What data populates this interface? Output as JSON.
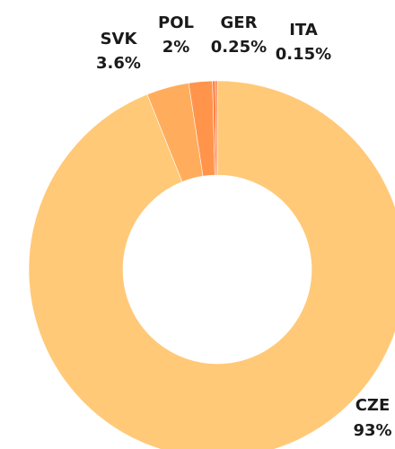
{
  "chart_data": {
    "type": "donut",
    "categories": [
      "CZE",
      "SVK",
      "POL",
      "GER",
      "ITA"
    ],
    "values": [
      93,
      3.6,
      2,
      0.25,
      0.15
    ],
    "value_labels": [
      "93%",
      "3.6%",
      "2%",
      "0.25%",
      "0.15%"
    ],
    "colors": [
      "#ffc978",
      "#ffad5c",
      "#ff944a",
      "#ff8040",
      "#ff6a30"
    ]
  }
}
